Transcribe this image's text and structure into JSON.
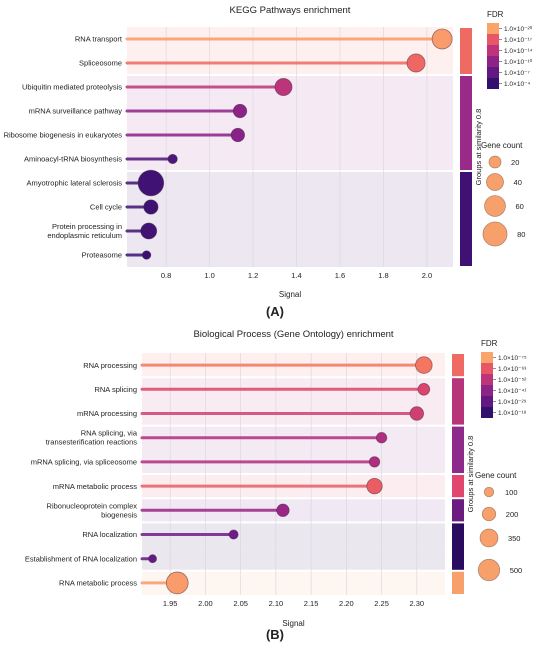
{
  "chart_data": [
    {
      "type": "lollipop",
      "panel_label": "(A)",
      "title": "KEGG Pathways enrichment",
      "xlabel": "Signal",
      "xlim": [
        0.62,
        2.12
      ],
      "xticks": [
        "0.8",
        "1.0",
        "1.2",
        "1.4",
        "1.6",
        "1.8",
        "2.0"
      ],
      "group_label": "Groups at similarity 0.8",
      "categories": [
        "RNA transport",
        "Spliceosome",
        "Ubiquitin mediated proteolysis",
        "mRNA surveillance pathway",
        "Ribosome biogenesis in eukaryotes",
        "Aminoacyl-tRNA biosynthesis",
        "Amyotrophic lateral sclerosis",
        "Cell cycle",
        "Protein processing in endoplasmic reticulum",
        "Proteasome"
      ],
      "signal": [
        2.07,
        1.95,
        1.34,
        1.14,
        1.13,
        0.83,
        0.73,
        0.73,
        0.72,
        0.71
      ],
      "gene_count": [
        55,
        45,
        40,
        25,
        25,
        12,
        90,
        28,
        35,
        10
      ],
      "fdr_level": [
        0.98,
        0.85,
        0.6,
        0.4,
        0.38,
        0.12,
        0.05,
        0.04,
        0.06,
        0.03
      ],
      "groups": [
        {
          "rows": [
            0,
            1
          ],
          "color": "#ef6a62"
        },
        {
          "rows": [
            2,
            5
          ],
          "color": "#9a2a88"
        },
        {
          "rows": [
            6,
            9
          ],
          "color": "#3e1173"
        }
      ],
      "row_group": [
        0,
        0,
        1,
        1,
        1,
        1,
        2,
        2,
        2,
        2
      ],
      "fdr_legend": {
        "title": "FDR",
        "labels": [
          "1.0×10⁻²⁰",
          "1.0×10⁻¹⁷",
          "1.0×10⁻¹⁴",
          "1.0×10⁻¹⁰",
          "1.0×10⁻⁷",
          "1.0×10⁻⁴"
        ]
      },
      "size_legend": {
        "title": "Gene count",
        "values": [
          20,
          40,
          60,
          80
        ]
      }
    },
    {
      "type": "lollipop",
      "panel_label": "(B)",
      "title": "Biological Process (Gene Ontology) enrichment",
      "xlabel": "Signal",
      "xlim": [
        1.91,
        2.34
      ],
      "xticks": [
        "1.95",
        "2.00",
        "2.05",
        "2.10",
        "2.15",
        "2.20",
        "2.25",
        "2.30"
      ],
      "group_label": "Groups at similarity 0.8",
      "categories": [
        "RNA processing",
        "RNA splicing",
        "mRNA processing",
        "RNA splicing, via transesterification reactions",
        "mRNA splicing, via spliceosome",
        "mRNA metabolic process",
        "Ribonucleoprotein complex biogenesis",
        "RNA localization",
        "Establishment of RNA localization",
        "RNA metabolic process"
      ],
      "signal": [
        2.31,
        2.31,
        2.3,
        2.25,
        2.24,
        2.24,
        2.11,
        2.04,
        1.925,
        1.96
      ],
      "gene_count": [
        300,
        150,
        200,
        120,
        120,
        260,
        170,
        90,
        70,
        520
      ],
      "fdr_level": [
        0.9,
        0.72,
        0.68,
        0.55,
        0.55,
        0.82,
        0.45,
        0.28,
        0.22,
        0.98
      ],
      "groups": [
        {
          "rows": [
            0,
            0
          ],
          "color": "#ef6a62"
        },
        {
          "rows": [
            1,
            2
          ],
          "color": "#b8347a"
        },
        {
          "rows": [
            3,
            4
          ],
          "color": "#8d2a8c"
        },
        {
          "rows": [
            5,
            5
          ],
          "color": "#e0466e"
        },
        {
          "rows": [
            6,
            6
          ],
          "color": "#6a1c80"
        },
        {
          "rows": [
            7,
            8
          ],
          "color": "#2a0c5e"
        },
        {
          "rows": [
            9,
            9
          ],
          "color": "#f7a06c"
        }
      ],
      "row_group": [
        0,
        1,
        1,
        2,
        2,
        3,
        4,
        5,
        5,
        6
      ],
      "fdr_legend": {
        "title": "FDR",
        "labels": [
          "1.0×10⁻⁷⁵",
          "1.0×10⁻⁶³",
          "1.0×10⁻⁵²",
          "1.0×10⁻⁴¹",
          "1.0×10⁻²⁹",
          "1.0×10⁻¹⁸"
        ]
      },
      "size_legend": {
        "title": "Gene count",
        "values": [
          100,
          200,
          350,
          500
        ]
      }
    }
  ]
}
